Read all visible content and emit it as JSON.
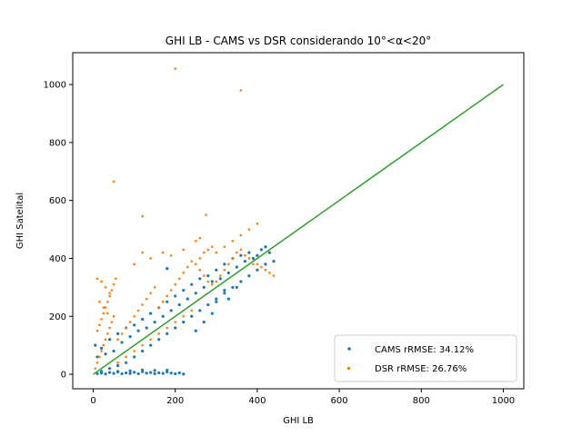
{
  "chart_data": {
    "type": "scatter",
    "title": "GHI LB - CAMS vs DSR considerando 10°<α<20°",
    "xlabel": "GHI LB",
    "ylabel": "GHI Satelital",
    "xlim": [
      -50,
      1050
    ],
    "ylim": [
      -50,
      1110
    ],
    "x_ticks": [
      0,
      200,
      400,
      600,
      800,
      1000
    ],
    "y_ticks": [
      0,
      200,
      400,
      600,
      800,
      1000
    ],
    "grid": false,
    "legend_position": "lower right",
    "series": [
      {
        "name": "CAMS rRMSE: 34.12%",
        "color": "#1f77b4",
        "marker": "circle",
        "points": [
          [
            5,
            100
          ],
          [
            10,
            60
          ],
          [
            20,
            90
          ],
          [
            30,
            70
          ],
          [
            40,
            120
          ],
          [
            50,
            80
          ],
          [
            60,
            140
          ],
          [
            70,
            110
          ],
          [
            80,
            160
          ],
          [
            90,
            130
          ],
          [
            100,
            170
          ],
          [
            110,
            150
          ],
          [
            120,
            190
          ],
          [
            130,
            160
          ],
          [
            140,
            210
          ],
          [
            150,
            180
          ],
          [
            160,
            230
          ],
          [
            170,
            200
          ],
          [
            180,
            250
          ],
          [
            190,
            220
          ],
          [
            200,
            270
          ],
          [
            210,
            240
          ],
          [
            220,
            290
          ],
          [
            230,
            260
          ],
          [
            240,
            310
          ],
          [
            250,
            280
          ],
          [
            260,
            330
          ],
          [
            270,
            300
          ],
          [
            280,
            340
          ],
          [
            290,
            320
          ],
          [
            300,
            360
          ],
          [
            310,
            330
          ],
          [
            320,
            380
          ],
          [
            330,
            350
          ],
          [
            340,
            400
          ],
          [
            350,
            370
          ],
          [
            360,
            410
          ],
          [
            370,
            390
          ],
          [
            380,
            420
          ],
          [
            390,
            400
          ],
          [
            400,
            410
          ],
          [
            410,
            430
          ],
          [
            420,
            440
          ],
          [
            430,
            420
          ],
          [
            440,
            390
          ],
          [
            420,
            380
          ],
          [
            400,
            360
          ],
          [
            380,
            340
          ],
          [
            360,
            320
          ],
          [
            340,
            300
          ],
          [
            320,
            280
          ],
          [
            300,
            260
          ],
          [
            280,
            240
          ],
          [
            260,
            220
          ],
          [
            240,
            200
          ],
          [
            220,
            180
          ],
          [
            200,
            160
          ],
          [
            180,
            140
          ],
          [
            160,
            120
          ],
          [
            140,
            100
          ],
          [
            120,
            80
          ],
          [
            100,
            60
          ],
          [
            80,
            40
          ],
          [
            60,
            30
          ],
          [
            40,
            20
          ],
          [
            20,
            10
          ],
          [
            10,
            2
          ],
          [
            20,
            4
          ],
          [
            30,
            1
          ],
          [
            40,
            6
          ],
          [
            50,
            3
          ],
          [
            60,
            8
          ],
          [
            70,
            2
          ],
          [
            80,
            5
          ],
          [
            90,
            3
          ],
          [
            100,
            7
          ],
          [
            110,
            2
          ],
          [
            120,
            9
          ],
          [
            130,
            4
          ],
          [
            140,
            6
          ],
          [
            150,
            2
          ],
          [
            160,
            5
          ],
          [
            170,
            3
          ],
          [
            180,
            8
          ],
          [
            190,
            4
          ],
          [
            200,
            2
          ],
          [
            210,
            5
          ],
          [
            220,
            1
          ],
          [
            60,
            10
          ],
          [
            90,
            12
          ],
          [
            120,
            15
          ],
          [
            150,
            13
          ],
          [
            180,
            14
          ],
          [
            180,
            365
          ],
          [
            320,
            290
          ],
          [
            350,
            300
          ],
          [
            300,
            250
          ],
          [
            270,
            180
          ],
          [
            250,
            150
          ],
          [
            290,
            210
          ],
          [
            330,
            260
          ]
        ]
      },
      {
        "name": "DSR rRMSE: 26.76%",
        "color": "#ff7f0e",
        "marker": "square",
        "points": [
          [
            5,
            20
          ],
          [
            10,
            40
          ],
          [
            15,
            60
          ],
          [
            20,
            80
          ],
          [
            25,
            100
          ],
          [
            30,
            120
          ],
          [
            35,
            140
          ],
          [
            40,
            160
          ],
          [
            45,
            180
          ],
          [
            50,
            200
          ],
          [
            10,
            150
          ],
          [
            15,
            170
          ],
          [
            20,
            190
          ],
          [
            25,
            210
          ],
          [
            30,
            230
          ],
          [
            35,
            250
          ],
          [
            40,
            270
          ],
          [
            45,
            290
          ],
          [
            50,
            310
          ],
          [
            55,
            330
          ],
          [
            60,
            120
          ],
          [
            70,
            140
          ],
          [
            80,
            160
          ],
          [
            90,
            180
          ],
          [
            100,
            200
          ],
          [
            110,
            220
          ],
          [
            120,
            240
          ],
          [
            130,
            260
          ],
          [
            140,
            280
          ],
          [
            150,
            300
          ],
          [
            160,
            230
          ],
          [
            170,
            250
          ],
          [
            180,
            270
          ],
          [
            190,
            290
          ],
          [
            200,
            310
          ],
          [
            210,
            330
          ],
          [
            220,
            350
          ],
          [
            230,
            370
          ],
          [
            240,
            390
          ],
          [
            250,
            380
          ],
          [
            260,
            360
          ],
          [
            270,
            340
          ],
          [
            280,
            320
          ],
          [
            290,
            310
          ],
          [
            300,
            320
          ],
          [
            310,
            340
          ],
          [
            320,
            360
          ],
          [
            330,
            380
          ],
          [
            340,
            400
          ],
          [
            350,
            420
          ],
          [
            360,
            430
          ],
          [
            370,
            410
          ],
          [
            380,
            400
          ],
          [
            390,
            380
          ],
          [
            400,
            380
          ],
          [
            410,
            370
          ],
          [
            420,
            360
          ],
          [
            430,
            350
          ],
          [
            440,
            340
          ],
          [
            260,
            400
          ],
          [
            270,
            420
          ],
          [
            280,
            430
          ],
          [
            290,
            440
          ],
          [
            300,
            420
          ],
          [
            320,
            440
          ],
          [
            340,
            460
          ],
          [
            360,
            480
          ],
          [
            380,
            500
          ],
          [
            400,
            520
          ],
          [
            100,
            380
          ],
          [
            140,
            400
          ],
          [
            170,
            420
          ],
          [
            190,
            410
          ],
          [
            220,
            430
          ],
          [
            250,
            460
          ],
          [
            10,
            330
          ],
          [
            20,
            320
          ],
          [
            30,
            300
          ],
          [
            40,
            280
          ],
          [
            15,
            250
          ],
          [
            25,
            230
          ],
          [
            35,
            210
          ],
          [
            60,
            40
          ],
          [
            80,
            60
          ],
          [
            100,
            80
          ],
          [
            120,
            100
          ],
          [
            140,
            120
          ],
          [
            160,
            140
          ],
          [
            180,
            160
          ],
          [
            200,
            180
          ],
          [
            220,
            200
          ],
          [
            240,
            220
          ],
          [
            200,
            1055
          ],
          [
            360,
            980
          ],
          [
            50,
            665
          ],
          [
            120,
            545
          ],
          [
            275,
            550
          ],
          [
            260,
            470
          ],
          [
            120,
            420
          ]
        ]
      },
      {
        "name": "",
        "color": "#2ca02c",
        "type": "line",
        "points": [
          [
            0,
            0
          ],
          [
            1000,
            1000
          ]
        ]
      }
    ]
  }
}
